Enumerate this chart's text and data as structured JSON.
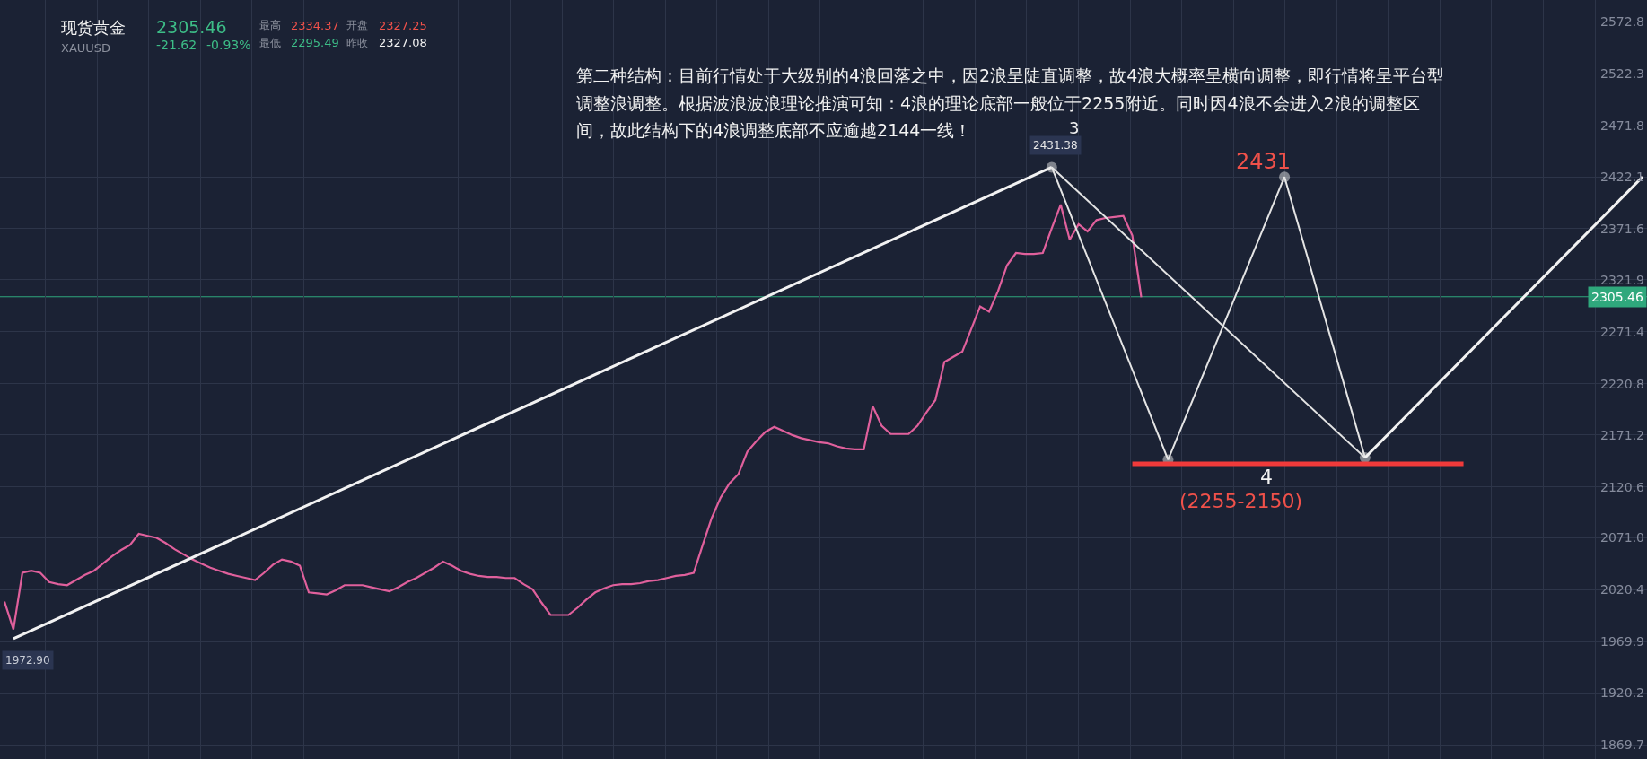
{
  "chart_data": {
    "type": "line",
    "categories": [
      null,
      null,
      null,
      null,
      null,
      null,
      null,
      null,
      null,
      null,
      null,
      null,
      null,
      null,
      null,
      null,
      null,
      null,
      null,
      null,
      null,
      null,
      null,
      null,
      null,
      null,
      null,
      null,
      null,
      null,
      null,
      null,
      null,
      null,
      null,
      null,
      null,
      null,
      null,
      null,
      null,
      null,
      null,
      null,
      null,
      null,
      null,
      null,
      null,
      null,
      null,
      null,
      null,
      null,
      null,
      null,
      null,
      null,
      null,
      null,
      null,
      null,
      null,
      null,
      null,
      null,
      null,
      null,
      null,
      null,
      null,
      null,
      null,
      null,
      null,
      null,
      null,
      null,
      null,
      null,
      null,
      null,
      null,
      null,
      null,
      null,
      null,
      null,
      null,
      null,
      null,
      null,
      null,
      null,
      null,
      null,
      null,
      null,
      null,
      null,
      null,
      null,
      null,
      null,
      null,
      null,
      null,
      null,
      null,
      null,
      null,
      null,
      null,
      null,
      null,
      null,
      null,
      null,
      null,
      null,
      null,
      null,
      null,
      null,
      null,
      null,
      null,
      null,
      null,
      null,
      null,
      null,
      null,
      null,
      null,
      null,
      null,
      null,
      null,
      null,
      null,
      null,
      null,
      null,
      null,
      null,
      null,
      null,
      null,
      null,
      null,
      null,
      null,
      null,
      null,
      null,
      null,
      null,
      null,
      null,
      null,
      null,
      null,
      null,
      null,
      null,
      null,
      null,
      null,
      null,
      null,
      null,
      null,
      null,
      null,
      null,
      null,
      null,
      null,
      null,
      null,
      null,
      null,
      null
    ],
    "series": [
      {
        "color": "#e0609c",
        "values": [
          2009,
          1982,
          2037,
          2039,
          2037,
          2028,
          2026,
          2025,
          2030,
          2035,
          2039,
          2046,
          2053,
          2059,
          2064,
          2075,
          2073,
          2071,
          2066,
          2060,
          2055,
          2050,
          2046,
          2042,
          2039,
          2036,
          2034,
          2032,
          2030,
          2037,
          2045,
          2050,
          2048,
          2044,
          2018,
          2017,
          2016,
          2020,
          2025,
          2025,
          2025,
          2023,
          2021,
          2019,
          2023,
          2028,
          2032,
          2037,
          2042,
          2048,
          2044,
          2039,
          2036,
          2034,
          2033,
          2033,
          2032,
          2032,
          2026,
          2021,
          2008,
          1996,
          1996,
          1996,
          2003,
          2011,
          2018,
          2022,
          2025,
          2026,
          2026,
          2027,
          2029,
          2030,
          2032,
          2034,
          2035,
          2037,
          2064,
          2090,
          2110,
          2124,
          2133,
          2155,
          2165,
          2174,
          2179,
          2175,
          2171,
          2168,
          2166,
          2164,
          2163,
          2160,
          2158,
          2157,
          2157,
          2199,
          2180,
          2172,
          2172,
          2172,
          2180,
          2193,
          2205,
          2242,
          2247,
          2252,
          2274,
          2296,
          2291,
          2311,
          2336,
          2348,
          2347,
          2347,
          2348,
          2372,
          2395,
          2361,
          2376,
          2369,
          2380,
          2382,
          2383,
          2384,
          2365,
          2305,
          null,
          null,
          null,
          null,
          null,
          null,
          null,
          null,
          null,
          null,
          null,
          null,
          null,
          null,
          null,
          null,
          null,
          null,
          null,
          null,
          null,
          null,
          null,
          null,
          null,
          null,
          null,
          null,
          null,
          null,
          null,
          null,
          null,
          null,
          null,
          null,
          null,
          null,
          null,
          null,
          null,
          null,
          null,
          null,
          null,
          null,
          null,
          null,
          null,
          null,
          null,
          null,
          null,
          null,
          null,
          null
        ]
      },
      {
        "color": "#f2f2f2",
        "values": [
          null,
          1972.9,
          null,
          null,
          null,
          null,
          null,
          null,
          null,
          null,
          null,
          null,
          null,
          null,
          null,
          null,
          null,
          null,
          null,
          null,
          null,
          null,
          null,
          null,
          null,
          null,
          null,
          null,
          null,
          null,
          null,
          null,
          null,
          null,
          null,
          null,
          null,
          null,
          null,
          null,
          null,
          null,
          null,
          null,
          null,
          null,
          null,
          null,
          null,
          null,
          null,
          null,
          null,
          null,
          null,
          null,
          null,
          null,
          null,
          null,
          null,
          null,
          null,
          null,
          null,
          null,
          null,
          null,
          null,
          null,
          null,
          null,
          null,
          null,
          null,
          null,
          null,
          null,
          null,
          null,
          null,
          null,
          null,
          null,
          null,
          null,
          null,
          null,
          null,
          null,
          null,
          null,
          null,
          null,
          null,
          null,
          null,
          null,
          null,
          null,
          null,
          null,
          null,
          null,
          null,
          null,
          null,
          null,
          null,
          null,
          null,
          null,
          null,
          null,
          null,
          null,
          null,
          2431.38,
          null,
          null,
          null,
          null,
          null,
          null,
          null,
          null,
          null,
          null,
          null,
          null,
          null,
          null,
          null,
          null,
          null,
          null,
          null,
          null,
          null,
          null,
          null,
          null,
          null,
          null,
          null,
          null,
          null,
          null,
          null,
          null,
          null,
          null,
          null,
          null,
          null,
          null,
          null,
          null,
          null,
          null,
          null,
          null,
          null,
          null,
          null,
          null,
          null,
          null,
          null,
          null,
          null,
          null,
          null,
          null,
          null,
          null,
          null,
          null,
          null,
          null,
          null,
          null,
          null,
          null
        ]
      },
      {
        "color": "#e4e4e4",
        "marker": "circle",
        "values": [
          null,
          null,
          null,
          null,
          null,
          null,
          null,
          null,
          null,
          null,
          null,
          null,
          null,
          null,
          null,
          null,
          null,
          null,
          null,
          null,
          null,
          null,
          null,
          null,
          null,
          null,
          null,
          null,
          null,
          null,
          null,
          null,
          null,
          null,
          null,
          null,
          null,
          null,
          null,
          null,
          null,
          null,
          null,
          null,
          null,
          null,
          null,
          null,
          null,
          null,
          null,
          null,
          null,
          null,
          null,
          null,
          null,
          null,
          null,
          null,
          null,
          null,
          null,
          null,
          null,
          null,
          null,
          null,
          null,
          null,
          null,
          null,
          null,
          null,
          null,
          null,
          null,
          null,
          null,
          null,
          null,
          null,
          null,
          null,
          null,
          null,
          null,
          null,
          null,
          null,
          null,
          null,
          null,
          null,
          null,
          null,
          null,
          null,
          null,
          null,
          null,
          null,
          null,
          null,
          null,
          null,
          null,
          null,
          null,
          null,
          null,
          null,
          null,
          null,
          null,
          null,
          null,
          2431.38,
          null,
          null,
          null,
          null,
          null,
          null,
          null,
          null,
          null,
          null,
          null,
          null,
          2147,
          null,
          null,
          null,
          null,
          null,
          null,
          null,
          null,
          null,
          null,
          null,
          null,
          2422,
          null,
          null,
          null,
          null,
          null,
          null,
          null,
          null,
          2149,
          null,
          null,
          null,
          null,
          null,
          null,
          null,
          null,
          null,
          null,
          null,
          null,
          null,
          null,
          null,
          null,
          null,
          null,
          null,
          null,
          null,
          null,
          null,
          null,
          null,
          null,
          null,
          null,
          null,
          null,
          null
        ]
      },
      {
        "color": "#e4e4e4",
        "values": [
          null,
          null,
          null,
          null,
          null,
          null,
          null,
          null,
          null,
          null,
          null,
          null,
          null,
          null,
          null,
          null,
          null,
          null,
          null,
          null,
          null,
          null,
          null,
          null,
          null,
          null,
          null,
          null,
          null,
          null,
          null,
          null,
          null,
          null,
          null,
          null,
          null,
          null,
          null,
          null,
          null,
          null,
          null,
          null,
          null,
          null,
          null,
          null,
          null,
          null,
          null,
          null,
          null,
          null,
          null,
          null,
          null,
          null,
          null,
          null,
          null,
          null,
          null,
          null,
          null,
          null,
          null,
          null,
          null,
          null,
          null,
          null,
          null,
          null,
          null,
          null,
          null,
          null,
          null,
          null,
          null,
          null,
          null,
          null,
          null,
          null,
          null,
          null,
          null,
          null,
          null,
          null,
          null,
          null,
          null,
          null,
          null,
          null,
          null,
          null,
          null,
          null,
          null,
          null,
          null,
          null,
          null,
          null,
          null,
          null,
          null,
          null,
          null,
          null,
          null,
          null,
          null,
          2431.38,
          null,
          null,
          null,
          null,
          null,
          null,
          null,
          null,
          null,
          null,
          null,
          null,
          null,
          null,
          null,
          null,
          null,
          null,
          null,
          null,
          null,
          null,
          null,
          null,
          null,
          null,
          null,
          null,
          null,
          null,
          null,
          null,
          null,
          null,
          2149,
          null,
          null,
          null,
          null,
          null,
          null,
          null,
          null,
          null,
          null,
          null,
          null,
          null,
          null,
          null,
          null,
          null,
          null,
          null,
          null,
          null,
          null,
          null,
          null,
          null,
          null,
          null,
          null,
          null,
          null,
          null
        ]
      },
      {
        "color": "#f2f2f2",
        "values": [
          null,
          null,
          null,
          null,
          null,
          null,
          null,
          null,
          null,
          null,
          null,
          null,
          null,
          null,
          null,
          null,
          null,
          null,
          null,
          null,
          null,
          null,
          null,
          null,
          null,
          null,
          null,
          null,
          null,
          null,
          null,
          null,
          null,
          null,
          null,
          null,
          null,
          null,
          null,
          null,
          null,
          null,
          null,
          null,
          null,
          null,
          null,
          null,
          null,
          null,
          null,
          null,
          null,
          null,
          null,
          null,
          null,
          null,
          null,
          null,
          null,
          null,
          null,
          null,
          null,
          null,
          null,
          null,
          null,
          null,
          null,
          null,
          null,
          null,
          null,
          null,
          null,
          null,
          null,
          null,
          null,
          null,
          null,
          null,
          null,
          null,
          null,
          null,
          null,
          null,
          null,
          null,
          null,
          null,
          null,
          null,
          null,
          null,
          null,
          null,
          null,
          null,
          null,
          null,
          null,
          null,
          null,
          null,
          null,
          null,
          null,
          null,
          null,
          null,
          null,
          null,
          null,
          null,
          null,
          null,
          null,
          null,
          null,
          null,
          null,
          null,
          null,
          null,
          null,
          null,
          null,
          null,
          null,
          null,
          null,
          null,
          null,
          null,
          null,
          null,
          null,
          null,
          null,
          null,
          null,
          null,
          null,
          null,
          null,
          null,
          null,
          null,
          2149,
          null,
          null,
          null,
          null,
          null,
          null,
          null,
          null,
          null,
          null,
          null,
          null,
          null,
          null,
          null,
          null,
          null,
          null,
          null,
          null,
          null,
          null,
          null,
          null,
          null,
          null,
          null,
          null,
          null,
          null,
          2422
        ]
      },
      {
        "color": "#f03a3a",
        "values": [
          null,
          null,
          null,
          null,
          null,
          null,
          null,
          null,
          null,
          null,
          null,
          null,
          null,
          null,
          null,
          null,
          null,
          null,
          null,
          null,
          null,
          null,
          null,
          null,
          null,
          null,
          null,
          null,
          null,
          null,
          null,
          null,
          null,
          null,
          null,
          null,
          null,
          null,
          null,
          null,
          null,
          null,
          null,
          null,
          null,
          null,
          null,
          null,
          null,
          null,
          null,
          null,
          null,
          null,
          null,
          null,
          null,
          null,
          null,
          null,
          null,
          null,
          null,
          null,
          null,
          null,
          null,
          null,
          null,
          null,
          null,
          null,
          null,
          null,
          null,
          null,
          null,
          null,
          null,
          null,
          null,
          null,
          null,
          null,
          null,
          null,
          null,
          null,
          null,
          null,
          null,
          null,
          null,
          null,
          null,
          null,
          null,
          null,
          null,
          null,
          null,
          null,
          null,
          null,
          null,
          null,
          null,
          null,
          null,
          null,
          null,
          null,
          null,
          null,
          null,
          null,
          null,
          null,
          null,
          null,
          null,
          null,
          null,
          null,
          null,
          null,
          2143,
          null,
          null,
          null,
          null,
          null,
          null,
          null,
          null,
          null,
          null,
          null,
          null,
          null,
          null,
          null,
          null,
          null,
          null,
          null,
          null,
          null,
          null,
          null,
          null,
          null,
          null,
          null,
          null,
          null,
          null,
          null,
          null,
          null,
          null,
          null,
          null,
          2143,
          null,
          null,
          null,
          null,
          null,
          null,
          null,
          null,
          null,
          null,
          null,
          null,
          null,
          null,
          null,
          null,
          null,
          null,
          null,
          null
        ]
      }
    ],
    "ylim": [
      1856,
      2594
    ],
    "yticks": [
      2572.8,
      2522.3,
      2471.8,
      2422.1,
      2371.6,
      2321.9,
      2271.4,
      2220.8,
      2171.2,
      2120.6,
      {
        "value": 2071,
        "label": "2071.0"
      },
      2020.4,
      1969.9,
      1920.2,
      1869.7
    ],
    "ref_lines": [
      {
        "axis": "y",
        "value": 2305.46,
        "label": "2305.46",
        "color": "#2fa87c"
      }
    ],
    "grid": true,
    "tick_labels": "y",
    "annotations": [
      "现货黄金",
      "XAUUSD",
      "2305.46",
      "-21.62",
      "-0.93%",
      "最高",
      "2334.37",
      "开盘",
      "2327.25",
      "最低",
      "2295.49",
      "昨收",
      "2327.08",
      "第二种结构：目前行情处于大级别的4浪回落之中，因2浪呈陡直调整，故4浪大概率呈横向调整，即行情将呈平台型",
      "调整浪调整。根据波浪波浪理论推演可知：4浪的理论底部一般位于2255附近。同时因4浪不会进入2浪的调整区",
      "间，故此结构下的4浪调整底部不应逾越2144一线！",
      "3",
      {
        "text": "2431.38",
        "y": 2431.38
      },
      "1972.90",
      "2431",
      "4",
      "(2255-2150)"
    ]
  }
}
